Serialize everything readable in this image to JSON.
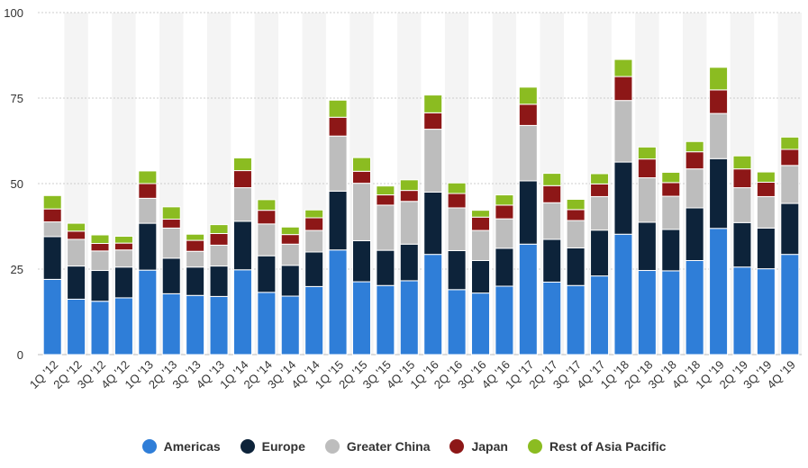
{
  "chart_data": {
    "type": "bar",
    "stacked": true,
    "categories": [
      "1Q '12",
      "2Q '12",
      "3Q '12",
      "4Q '12",
      "1Q '13",
      "2Q '13",
      "3Q '13",
      "4Q '13",
      "1Q '14",
      "2Q '14",
      "3Q '14",
      "4Q '14",
      "1Q '15",
      "2Q '15",
      "3Q '15",
      "4Q '15",
      "1Q '16",
      "2Q '16",
      "3Q '16",
      "4Q '16",
      "1Q '17",
      "2Q '17",
      "3Q '17",
      "4Q '17",
      "1Q '18",
      "2Q '18",
      "3Q '18",
      "4Q '18",
      "1Q '19",
      "2Q '19",
      "3Q '19",
      "4Q '19"
    ],
    "series": [
      {
        "name": "Americas",
        "color": "#2f7ed8",
        "values": [
          22.0,
          16.2,
          15.6,
          16.6,
          24.7,
          17.8,
          17.3,
          17.0,
          24.8,
          18.2,
          17.1,
          19.9,
          30.6,
          21.3,
          20.2,
          21.6,
          29.3,
          19.0,
          18.0,
          20.0,
          32.3,
          21.2,
          20.2,
          23.0,
          35.2,
          24.6,
          24.5,
          27.5,
          36.9,
          25.6,
          25.1,
          29.3
        ]
      },
      {
        "name": "Europe",
        "color": "#0d233a",
        "values": [
          12.5,
          9.7,
          9.0,
          9.0,
          13.7,
          10.4,
          8.3,
          8.9,
          14.2,
          10.7,
          9.0,
          10.1,
          17.2,
          12.0,
          10.3,
          10.7,
          18.2,
          11.4,
          9.5,
          11.1,
          18.5,
          12.5,
          11.0,
          13.4,
          21.1,
          14.1,
          12.1,
          15.4,
          20.4,
          13.0,
          11.9,
          14.9
        ]
      },
      {
        "name": "Greater China",
        "color": "#bdbdbd",
        "values": [
          4.3,
          7.8,
          5.7,
          5.0,
          7.3,
          8.8,
          4.6,
          6.1,
          9.8,
          9.3,
          6.2,
          6.3,
          16.1,
          16.8,
          13.2,
          12.5,
          18.4,
          12.5,
          8.8,
          8.6,
          16.2,
          10.7,
          8.0,
          9.8,
          18.0,
          13.0,
          9.7,
          11.4,
          13.2,
          10.2,
          9.2,
          11.1
        ]
      },
      {
        "name": "Japan",
        "color": "#8d1717",
        "values": [
          3.8,
          2.4,
          2.2,
          2.0,
          4.3,
          2.6,
          3.2,
          3.4,
          5.0,
          4.0,
          2.8,
          3.7,
          5.5,
          3.5,
          3.0,
          3.2,
          4.8,
          4.2,
          3.9,
          4.0,
          6.2,
          5.0,
          3.2,
          3.7,
          7.0,
          5.5,
          4.0,
          5.0,
          6.9,
          5.5,
          4.2,
          4.7
        ]
      },
      {
        "name": "Rest of Asia Pacific",
        "color": "#8bbc21",
        "values": [
          3.9,
          2.3,
          2.5,
          2.0,
          3.7,
          3.6,
          1.8,
          2.6,
          3.7,
          3.1,
          2.2,
          2.3,
          5.0,
          4.0,
          2.6,
          3.1,
          5.2,
          3.1,
          2.0,
          3.0,
          5.0,
          3.6,
          3.0,
          3.0,
          5.0,
          3.5,
          3.0,
          3.0,
          6.6,
          3.8,
          3.0,
          3.6
        ]
      }
    ],
    "ylim": [
      0,
      100
    ],
    "yticks": [
      0,
      25,
      50,
      75,
      100
    ],
    "grid": true,
    "legend": "bottom"
  }
}
